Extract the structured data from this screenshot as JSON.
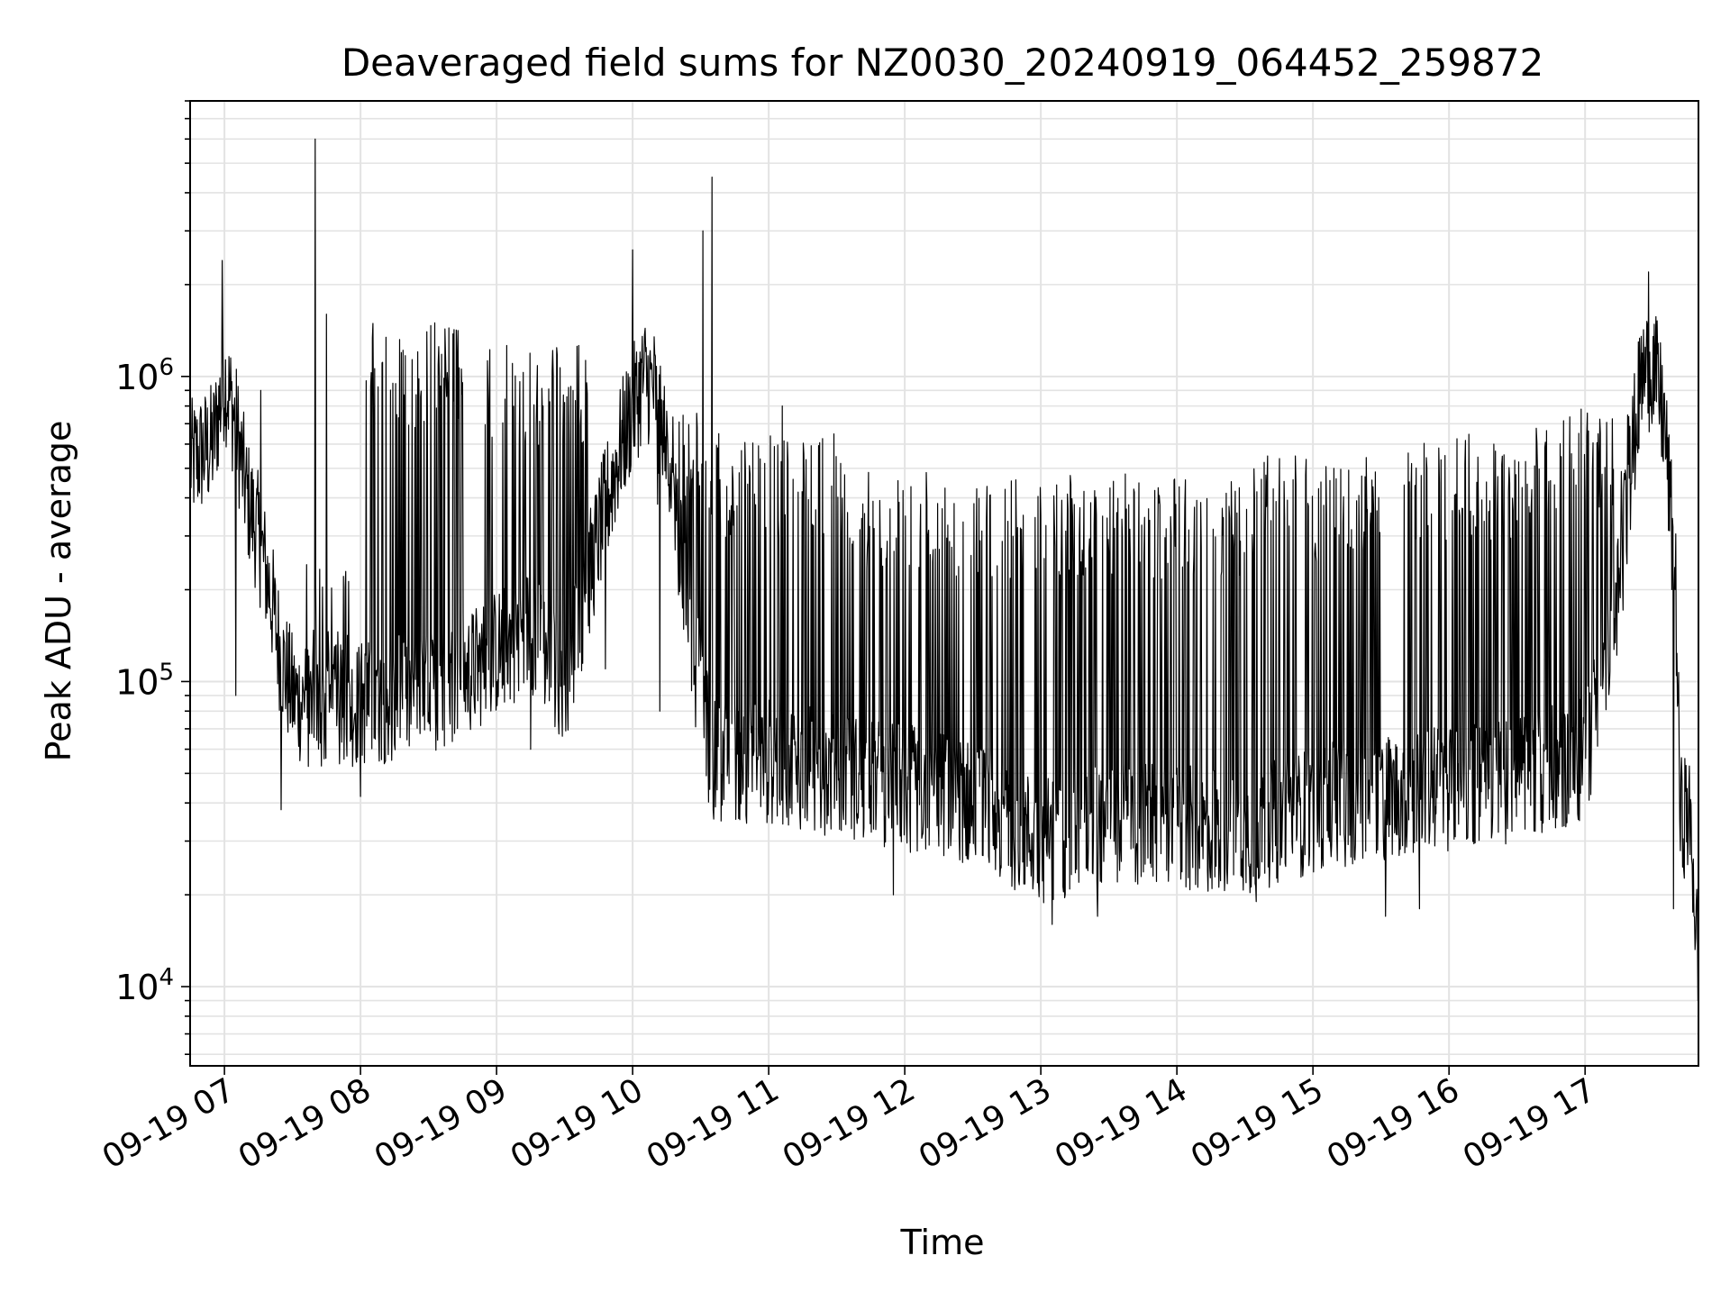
{
  "chart_data": {
    "type": "line",
    "title": "Deaveraged field sums for NZ0030_20240919_064452_259872",
    "xlabel": "Time",
    "ylabel": "Peak ADU - average",
    "yscale": "log",
    "ylim": [
      5500,
      8000000
    ],
    "xlim": [
      "2024-09-19 06:44:52",
      "2024-09-19 17:50:00"
    ],
    "grid": true,
    "line_color": "#000000",
    "x_ticks": [
      "09-19 07",
      "09-19 08",
      "09-19 09",
      "09-19 10",
      "09-19 11",
      "09-19 12",
      "09-19 13",
      "09-19 14",
      "09-19 15",
      "09-19 16",
      "09-19 17"
    ],
    "y_ticks": [
      {
        "base": "10",
        "exp": "4",
        "value": 10000
      },
      {
        "base": "10",
        "exp": "5",
        "value": 100000
      },
      {
        "base": "10",
        "exp": "6",
        "value": 1000000
      }
    ],
    "series": [
      {
        "baseline": {
          "x": [
            "2024-09-19 06:45",
            "2024-09-19 06:55",
            "2024-09-19 07:00",
            "2024-09-19 07:05",
            "2024-09-19 07:10",
            "2024-09-19 07:15",
            "2024-09-19 07:20",
            "2024-09-19 07:25",
            "2024-09-19 07:30",
            "2024-09-19 07:40",
            "2024-09-19 08:00",
            "2024-09-19 08:30",
            "2024-09-19 08:50",
            "2024-09-19 09:15",
            "2024-09-19 09:30",
            "2024-09-19 09:45",
            "2024-09-19 09:55",
            "2024-09-19 10:05",
            "2024-09-19 10:10",
            "2024-09-19 10:20",
            "2024-09-19 10:25",
            "2024-09-19 10:35",
            "2024-09-19 11:00",
            "2024-09-19 11:30",
            "2024-09-19 12:00",
            "2024-09-19 12:30",
            "2024-09-19 13:00",
            "2024-09-19 13:30",
            "2024-09-19 14:00",
            "2024-09-19 14:30",
            "2024-09-19 15:00",
            "2024-09-19 15:30",
            "2024-09-19 16:00",
            "2024-09-19 16:30",
            "2024-09-19 17:00",
            "2024-09-19 17:15",
            "2024-09-19 17:20",
            "2024-09-19 17:25",
            "2024-09-19 17:30",
            "2024-09-19 17:35",
            "2024-09-19 17:40",
            "2024-09-19 17:42",
            "2024-09-19 17:45",
            "2024-09-19 17:47",
            "2024-09-19 17:50"
          ],
          "y": [
            520000,
            600000,
            1000000,
            700000,
            400000,
            300000,
            200000,
            120000,
            90000,
            80000,
            85000,
            90000,
            110000,
            150000,
            100000,
            300000,
            600000,
            1000000,
            900000,
            300000,
            150000,
            55000,
            55000,
            50000,
            45000,
            40000,
            30000,
            35000,
            33000,
            32000,
            38000,
            42000,
            45000,
            48000,
            55000,
            200000,
            500000,
            1000000,
            1100000,
            700000,
            200000,
            35000,
            38000,
            30000,
            11000
          ]
        },
        "spike_regions": [
          {
            "start": "2024-09-19 07:35",
            "end": "2024-09-19 07:55",
            "peak": 250000
          },
          {
            "start": "2024-09-19 08:00",
            "end": "2024-09-19 08:45",
            "peak": 1500000
          },
          {
            "start": "2024-09-19 08:55",
            "end": "2024-09-19 09:40",
            "peak": 1300000
          },
          {
            "start": "2024-09-19 10:10",
            "end": "2024-09-19 10:30",
            "peak": 850000
          },
          {
            "start": "2024-09-19 10:30",
            "end": "2024-09-19 11:30",
            "peak": 650000
          },
          {
            "start": "2024-09-19 11:30",
            "end": "2024-09-19 12:20",
            "peak": 520000
          },
          {
            "start": "2024-09-19 12:20",
            "end": "2024-09-19 14:30",
            "peak": 480000
          },
          {
            "start": "2024-09-19 14:30",
            "end": "2024-09-19 15:30",
            "peak": 550000
          },
          {
            "start": "2024-09-19 15:40",
            "end": "2024-09-19 16:30",
            "peak": 650000
          },
          {
            "start": "2024-09-19 16:30",
            "end": "2024-09-19 17:20",
            "peak": 800000
          }
        ],
        "spikes": [
          {
            "x": "2024-09-19 06:59",
            "y": 2400000
          },
          {
            "x": "2024-09-19 07:05",
            "y": 90000
          },
          {
            "x": "2024-09-19 07:16",
            "y": 900000
          },
          {
            "x": "2024-09-19 07:25",
            "y": 38000
          },
          {
            "x": "2024-09-19 07:40",
            "y": 6000000
          },
          {
            "x": "2024-09-19 07:45",
            "y": 1600000
          },
          {
            "x": "2024-09-19 08:00",
            "y": 42000
          },
          {
            "x": "2024-09-19 09:15",
            "y": 60000
          },
          {
            "x": "2024-09-19 09:48",
            "y": 110000
          },
          {
            "x": "2024-09-19 10:00",
            "y": 2600000
          },
          {
            "x": "2024-09-19 10:12",
            "y": 80000
          },
          {
            "x": "2024-09-19 10:31",
            "y": 3000000
          },
          {
            "x": "2024-09-19 10:35",
            "y": 4500000
          },
          {
            "x": "2024-09-19 11:06",
            "y": 800000
          },
          {
            "x": "2024-09-19 11:55",
            "y": 20000
          },
          {
            "x": "2024-09-19 13:05",
            "y": 16000
          },
          {
            "x": "2024-09-19 13:25",
            "y": 17000
          },
          {
            "x": "2024-09-19 14:35",
            "y": 19000
          },
          {
            "x": "2024-09-19 15:32",
            "y": 17000
          },
          {
            "x": "2024-09-19 15:47",
            "y": 18000
          },
          {
            "x": "2024-09-19 17:28",
            "y": 2200000
          },
          {
            "x": "2024-09-19 17:39",
            "y": 18000
          },
          {
            "x": "2024-09-19 17:50",
            "y": 10000
          }
        ]
      }
    ]
  }
}
